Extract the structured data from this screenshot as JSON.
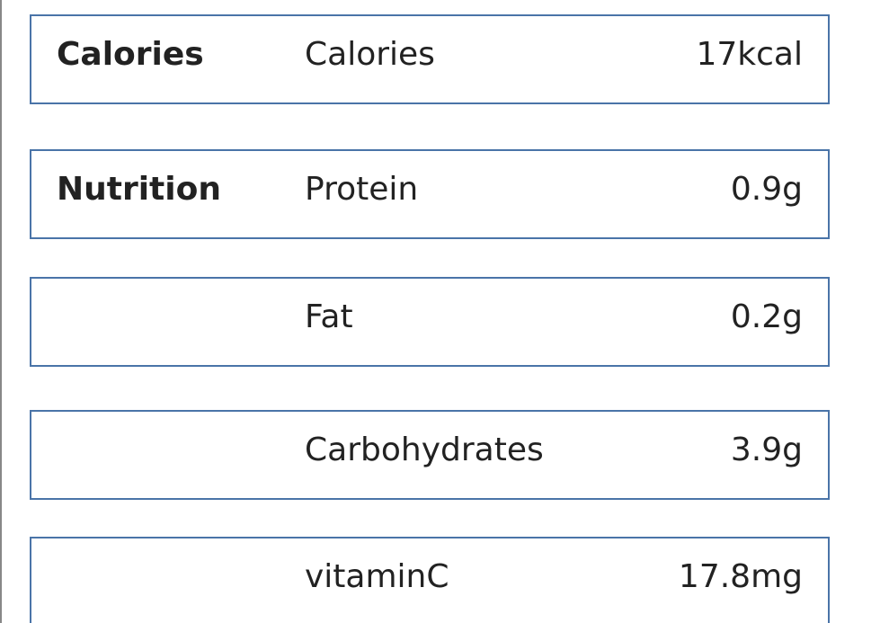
{
  "rows": [
    {
      "group": "Calories",
      "name": "Calories",
      "value": "17kcal"
    },
    {
      "group": "Nutrition",
      "name": "Protein",
      "value": "0.9g"
    },
    {
      "name": "Fat",
      "value": "0.2g"
    },
    {
      "name": "Carbohydrates",
      "value": "3.9g"
    },
    {
      "name": "vitaminC",
      "value": "17.8mg"
    }
  ]
}
